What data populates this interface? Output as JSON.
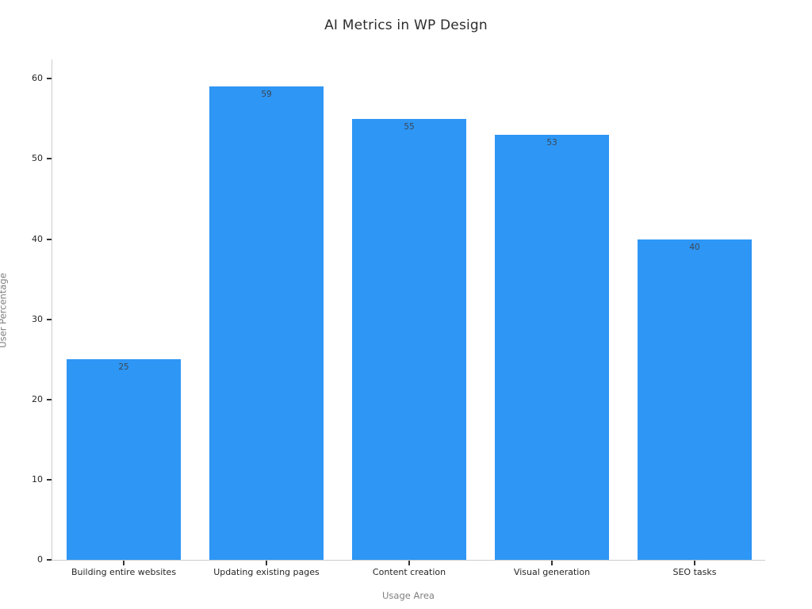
{
  "chart_data": {
    "type": "bar",
    "title": "AI Metrics in WP Design",
    "xlabel": "Usage Area",
    "ylabel": "User Percentage",
    "categories": [
      "Building entire websites",
      "Updating existing pages",
      "Content creation",
      "Visual generation",
      "SEO tasks"
    ],
    "values": [
      25,
      59,
      55,
      53,
      40
    ],
    "yticks": [
      0,
      10,
      20,
      30,
      40,
      50,
      60
    ],
    "ylim": [
      0,
      62.5
    ],
    "grid": false,
    "legend": false,
    "bar_color": "#2e96f5",
    "value_label_color": "#3b4754",
    "value_label_position": "inside-top",
    "spine_color": "#cccccc",
    "tick_color": "#333333",
    "tick_label_color": "#262626",
    "axis_title_color": "#7f7f7f",
    "title_color": "#2d2d2d",
    "bar_width_fraction": 0.8
  }
}
